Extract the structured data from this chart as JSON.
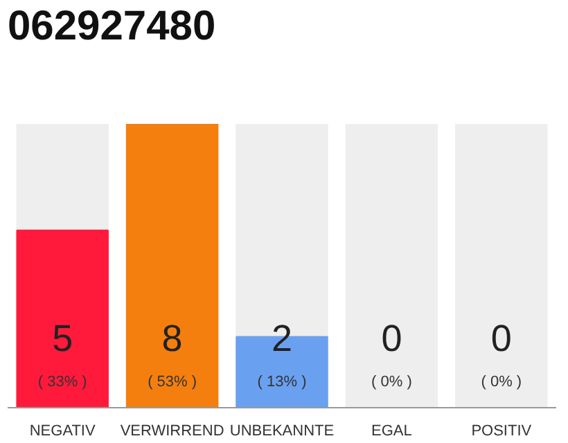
{
  "chart_data": {
    "type": "bar",
    "title": "062927480",
    "categories": [
      "NEGATIV",
      "VERWIRREND",
      "UNBEKANNTE",
      "EGAL",
      "POSITIV"
    ],
    "values": [
      5,
      8,
      2,
      0,
      0
    ],
    "data_labels": true,
    "tick_labels": "x",
    "colors": [
      "#ff1a3c",
      "#f47f0e",
      "#6aa0f0",
      "#b0b0b0",
      "#b0b0b0"
    ],
    "annotations": [
      "( 33% )",
      "( 53% )",
      "( 13% )",
      "( 0% )",
      "( 0% )"
    ],
    "grid": false
  }
}
